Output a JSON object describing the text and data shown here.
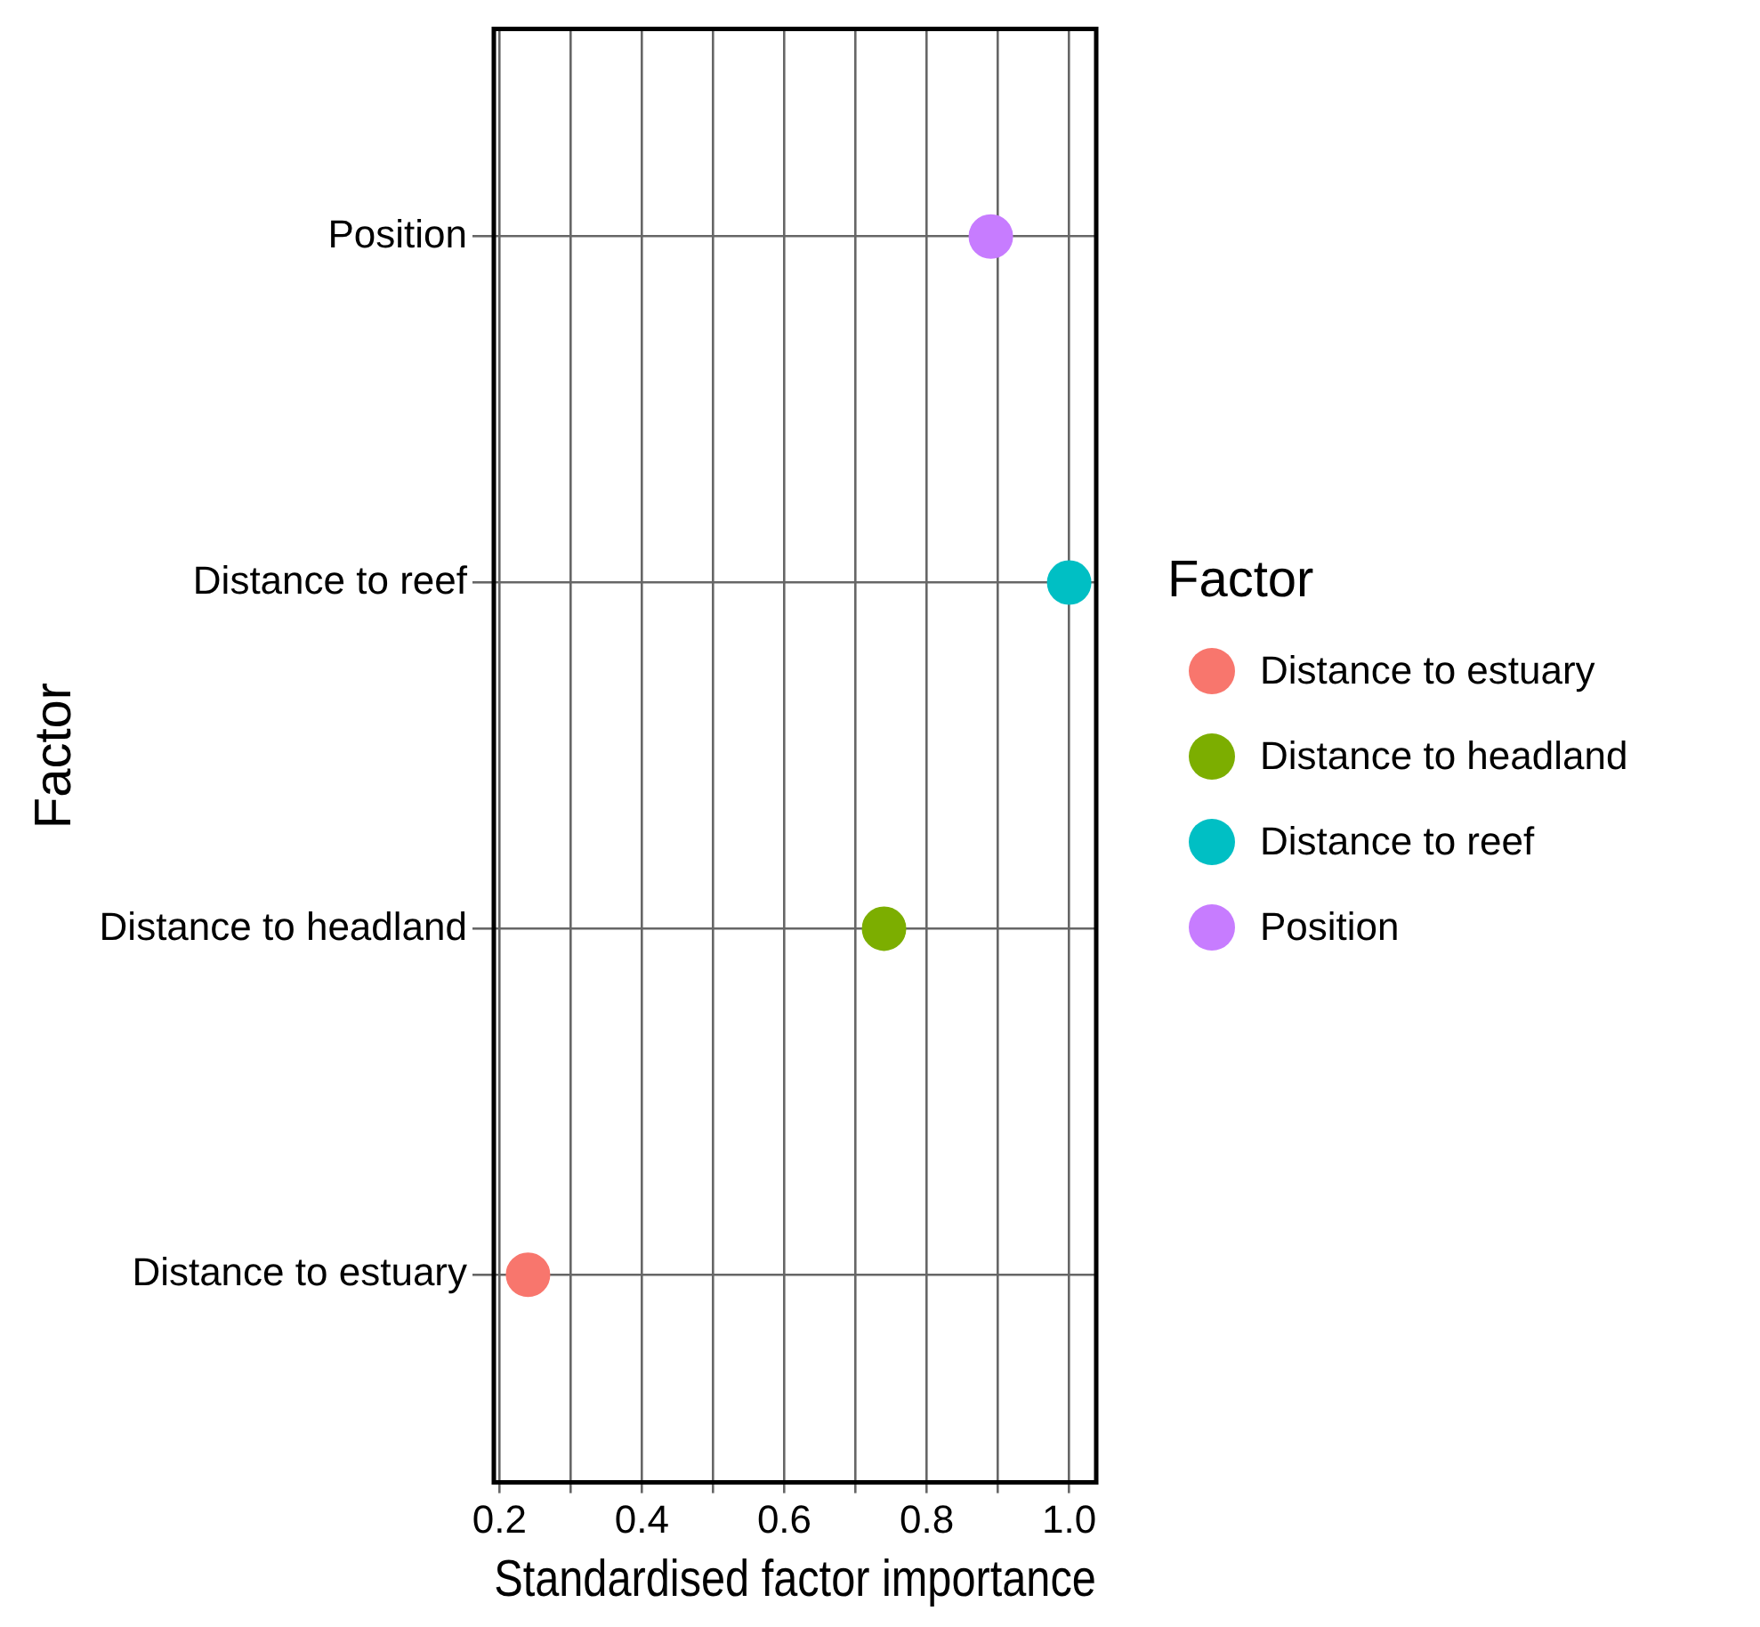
{
  "chart_data": {
    "type": "scatter",
    "orientation": "horizontal",
    "xlabel": "Standardised factor importance",
    "ylabel": "Factor",
    "legend_title": "Factor",
    "categories": [
      "Position",
      "Distance to reef",
      "Distance to headland",
      "Distance to estuary"
    ],
    "series": [
      {
        "name": "Distance to estuary",
        "color": "#f8766d",
        "values": [
          null,
          null,
          null,
          0.24
        ]
      },
      {
        "name": "Distance to headland",
        "color": "#7cae00",
        "values": [
          null,
          null,
          0.74,
          null
        ]
      },
      {
        "name": "Distance to reef",
        "color": "#00bfc4",
        "values": [
          null,
          1.0,
          null,
          null
        ]
      },
      {
        "name": "Position",
        "color": "#c77cff",
        "values": [
          0.89,
          null,
          null,
          null
        ]
      }
    ],
    "xlim": [
      0.192,
      1.038
    ],
    "xticks": [
      0.2,
      {
        "value": 0.3,
        "label": null
      },
      0.4,
      {
        "value": 0.5,
        "label": null
      },
      0.6,
      {
        "value": 0.7,
        "label": null
      },
      0.8,
      {
        "value": 0.9,
        "label": null
      },
      {
        "value": 1.0,
        "label": "1.0"
      }
    ],
    "grid": true,
    "legend": "right",
    "marker": "circle"
  }
}
